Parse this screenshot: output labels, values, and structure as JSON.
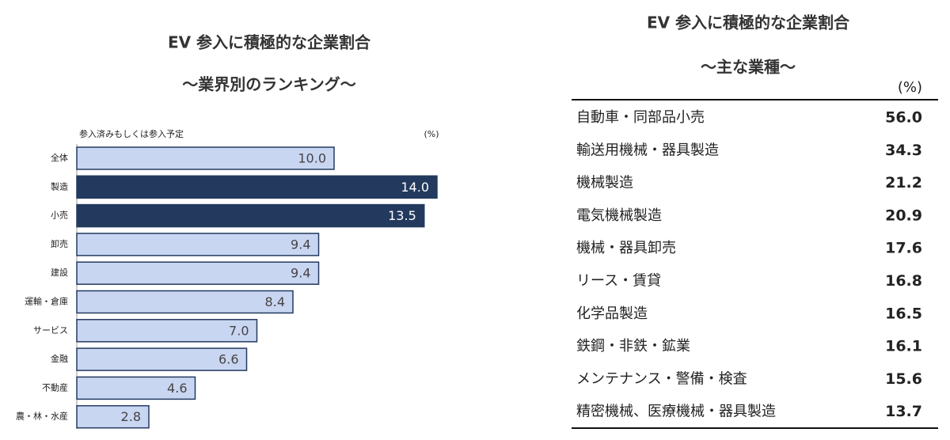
{
  "chart_data": {
    "type": "bar",
    "orientation": "horizontal",
    "title": "EV 参入に積極的な企業割合",
    "subtitle": "～業界別のランキング～",
    "annotation": "参入済みもしくは参入予定",
    "unit": "(%)",
    "categories": [
      "全体",
      "製造",
      "小売",
      "卸売",
      "建設",
      "運輸・倉庫",
      "サービス",
      "金融",
      "不動産",
      "農・林・水産"
    ],
    "values": [
      10.0,
      14.0,
      13.5,
      9.4,
      9.4,
      8.4,
      7.0,
      6.6,
      4.6,
      2.8
    ],
    "value_labels": [
      "10.0",
      "14.0",
      "13.5",
      "9.4",
      "9.4",
      "8.4",
      "7.0",
      "6.6",
      "4.6",
      "2.8"
    ],
    "colors": [
      "#c9d6f2",
      "#233a5e",
      "#233a5e",
      "#c9d6f2",
      "#c9d6f2",
      "#c9d6f2",
      "#c9d6f2",
      "#c9d6f2",
      "#c9d6f2",
      "#c9d6f2"
    ]
  },
  "table": {
    "title": "EV 参入に積極的な企業割合",
    "subtitle": "～主な業種～",
    "unit": "(%)",
    "rows": [
      [
        "自動車・同部品小売",
        "56.0"
      ],
      [
        "輸送用機械・器具製造",
        "34.3"
      ],
      [
        "機械製造",
        "21.2"
      ],
      [
        "電気機械製造",
        "20.9"
      ],
      [
        "機械・器具卸売",
        "17.6"
      ],
      [
        "リース・賃貸",
        "16.8"
      ],
      [
        "化学品製造",
        "16.5"
      ],
      [
        "鉄鋼・非鉄・鉱業",
        "16.1"
      ],
      [
        "メンテナンス・警備・検査",
        "15.6"
      ],
      [
        "精密機械、医療機械・器具製造",
        "13.7"
      ]
    ]
  }
}
